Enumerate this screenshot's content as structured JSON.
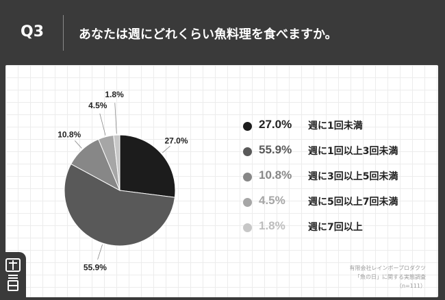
{
  "header": {
    "q_label": "Q3",
    "title": "あなたは週にどれくらい魚料理を食べますか。"
  },
  "chart_data": {
    "type": "pie",
    "categories": [
      "週に1回未満",
      "週に1回以上3回未満",
      "週に3回以上5回未満",
      "週に5回以上7回未満",
      "週に7回以上"
    ],
    "values": [
      27.0,
      55.9,
      10.8,
      4.5,
      1.8
    ],
    "value_labels": [
      "27.0%",
      "55.9%",
      "10.8%",
      "4.5%",
      "1.8%"
    ],
    "colors": [
      "#1c1c1c",
      "#595959",
      "#878787",
      "#a6a6a6",
      "#c7c7c7"
    ],
    "pct_text_colors": [
      "#222222",
      "#595959",
      "#878787",
      "#a6a6a6",
      "#bdbdbd"
    ],
    "legend_placement": "right",
    "start_angle_deg": 0,
    "direction": "clockwise"
  },
  "footnote": {
    "line1": "有限会社レインボープロダクツ",
    "line2": "「魚の日」に関する実態調査",
    "line3": "（n=111）"
  }
}
